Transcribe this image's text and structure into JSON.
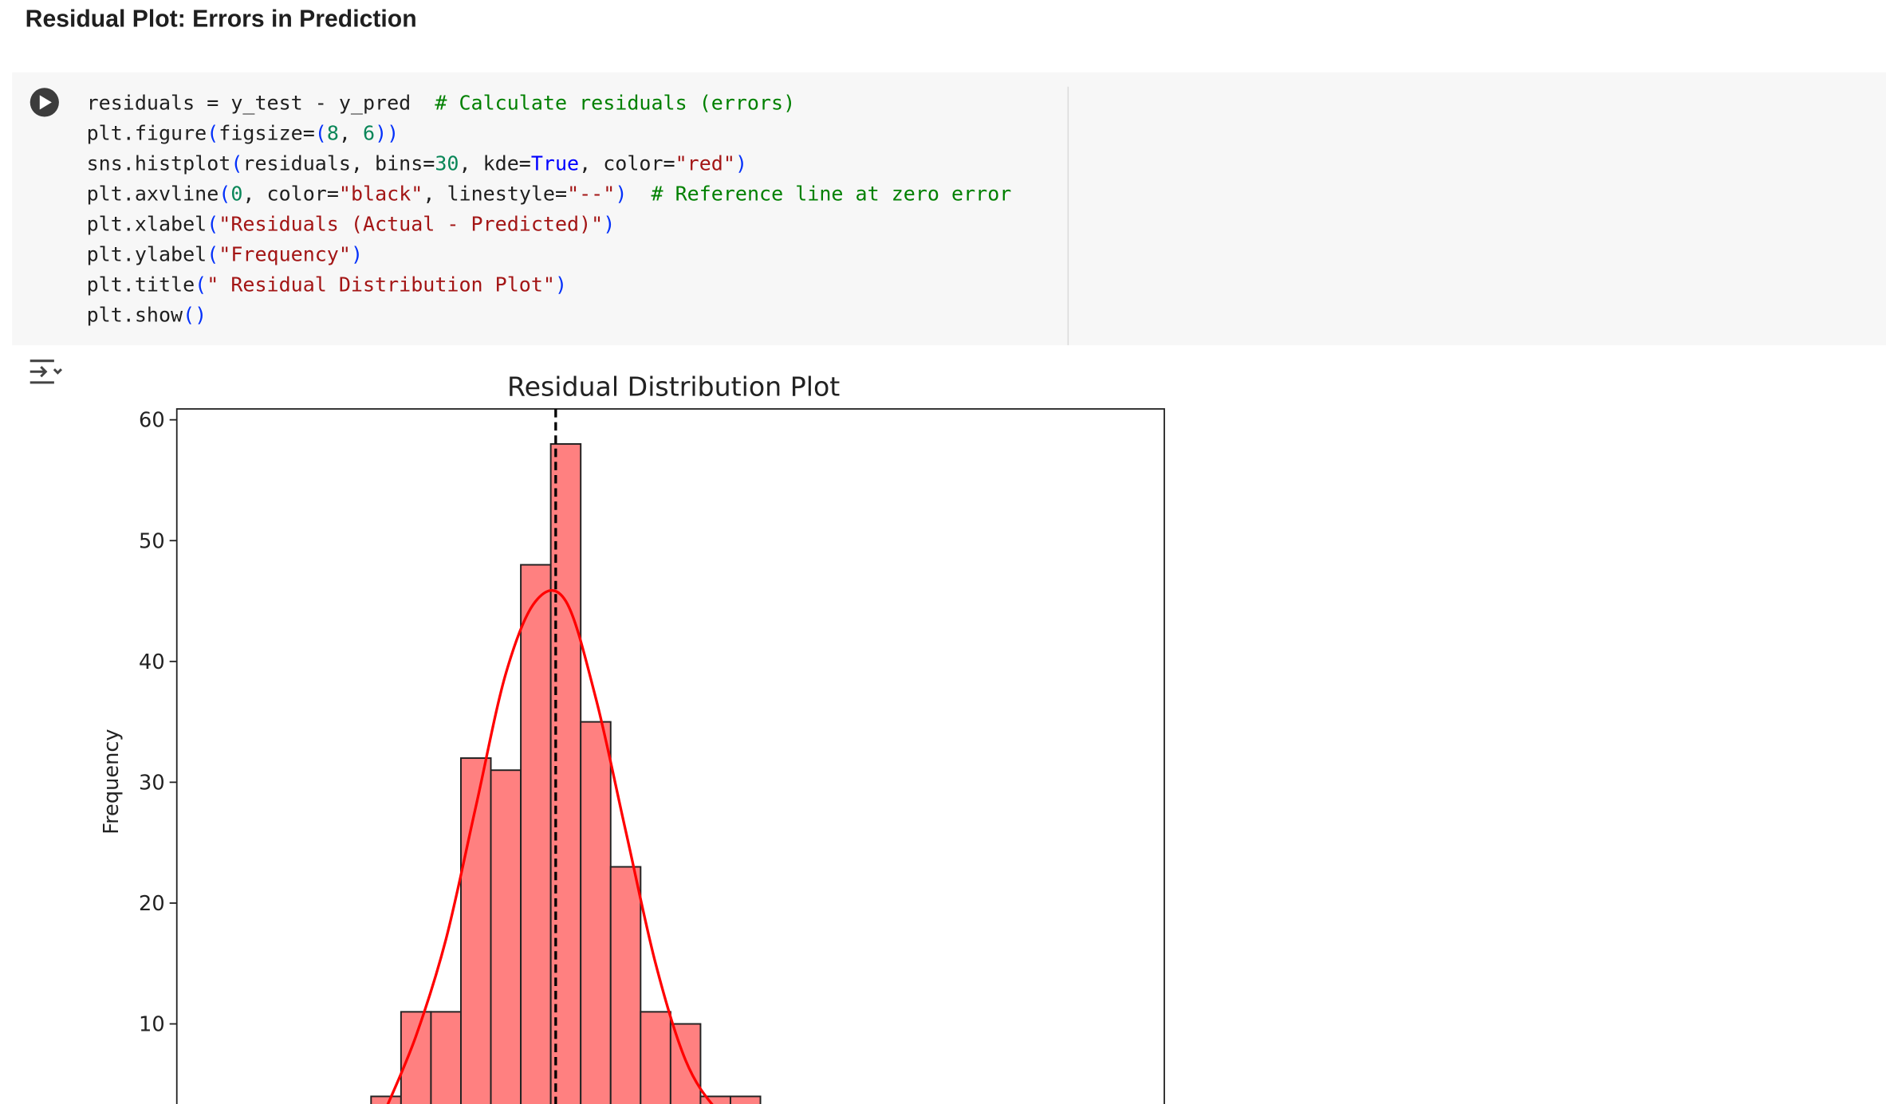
{
  "header": {
    "title": "Residual Plot: Errors in Prediction"
  },
  "code": {
    "lines": [
      [
        {
          "text": "residuals = y_test - y_pred  ",
          "color": "#1f1f1f"
        },
        {
          "text": "# Calculate residuals (errors)",
          "color": "#008000"
        }
      ],
      [
        {
          "text": "plt.figure",
          "color": "#1f1f1f"
        },
        {
          "text": "(",
          "color": "#0431fa"
        },
        {
          "text": "figsize=",
          "color": "#1f1f1f"
        },
        {
          "text": "(",
          "color": "#0431fa"
        },
        {
          "text": "8",
          "color": "#098658"
        },
        {
          "text": ", ",
          "color": "#1f1f1f"
        },
        {
          "text": "6",
          "color": "#098658"
        },
        {
          "text": "))",
          "color": "#0431fa"
        }
      ],
      [
        {
          "text": "sns.histplot",
          "color": "#1f1f1f"
        },
        {
          "text": "(",
          "color": "#0431fa"
        },
        {
          "text": "residuals, bins=",
          "color": "#1f1f1f"
        },
        {
          "text": "30",
          "color": "#098658"
        },
        {
          "text": ", kde=",
          "color": "#1f1f1f"
        },
        {
          "text": "True",
          "color": "#0000ff"
        },
        {
          "text": ", color=",
          "color": "#1f1f1f"
        },
        {
          "text": "\"red\"",
          "color": "#a31515"
        },
        {
          "text": ")",
          "color": "#0431fa"
        }
      ],
      [
        {
          "text": "plt.axvline",
          "color": "#1f1f1f"
        },
        {
          "text": "(",
          "color": "#0431fa"
        },
        {
          "text": "0",
          "color": "#098658"
        },
        {
          "text": ", color=",
          "color": "#1f1f1f"
        },
        {
          "text": "\"black\"",
          "color": "#a31515"
        },
        {
          "text": ", linestyle=",
          "color": "#1f1f1f"
        },
        {
          "text": "\"--\"",
          "color": "#a31515"
        },
        {
          "text": ")",
          "color": "#0431fa"
        },
        {
          "text": "  # Reference line at zero error",
          "color": "#008000"
        }
      ],
      [
        {
          "text": "plt.xlabel",
          "color": "#1f1f1f"
        },
        {
          "text": "(",
          "color": "#0431fa"
        },
        {
          "text": "\"Residuals (Actual - Predicted)\"",
          "color": "#a31515"
        },
        {
          "text": ")",
          "color": "#0431fa"
        }
      ],
      [
        {
          "text": "plt.ylabel",
          "color": "#1f1f1f"
        },
        {
          "text": "(",
          "color": "#0431fa"
        },
        {
          "text": "\"Frequency\"",
          "color": "#a31515"
        },
        {
          "text": ")",
          "color": "#0431fa"
        }
      ],
      [
        {
          "text": "plt.title",
          "color": "#1f1f1f"
        },
        {
          "text": "(",
          "color": "#0431fa"
        },
        {
          "text": "\" Residual Distribution Plot\"",
          "color": "#a31515"
        },
        {
          "text": ")",
          "color": "#0431fa"
        }
      ],
      [
        {
          "text": "plt.show",
          "color": "#1f1f1f"
        },
        {
          "text": "()",
          "color": "#0431fa"
        }
      ]
    ]
  },
  "chart_data": {
    "type": "histogram",
    "title": "Residual Distribution Plot",
    "y_label": "Frequency",
    "categories": [
      null,
      null,
      null,
      null,
      null,
      null,
      null,
      null,
      null,
      null,
      null,
      null,
      null
    ],
    "values": [
      4,
      11,
      11,
      32,
      31,
      48,
      58,
      35,
      23,
      11,
      10,
      4,
      4
    ],
    "color": "#ff8080",
    "kde": {
      "color": "#ff0000",
      "values": [
        3,
        9,
        17,
        28,
        39,
        45,
        45,
        37,
        26,
        15,
        7,
        3,
        1
      ]
    },
    "ylim": [
      0,
      60.9
    ],
    "yticks": [
      10,
      20,
      30,
      40,
      50,
      60
    ]
  }
}
